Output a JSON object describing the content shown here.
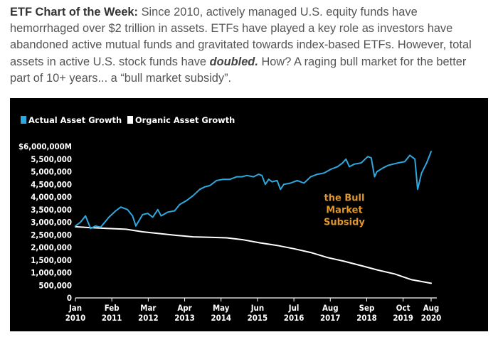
{
  "intro": {
    "lead": "ETF Chart of the Week:",
    "body1": " Since 2010, actively managed U.S. equity funds have hemorrhaged over $2 trillion in assets.  ETFs have played a key role as investors have abandoned active mutual funds and gravitated towards index-based ETFs. However, total assets in active U.S. stock funds have ",
    "emph": "doubled.",
    "body2": "  How?  A raging bull market for the better part of 10+ years... a “bull market subsidy”."
  },
  "colors": {
    "actual": "#2ea8e0",
    "organic": "#ffffff",
    "annotation": "#e0962a",
    "background": "#000000"
  },
  "chart_data": {
    "type": "line",
    "title": "",
    "xlabel": "",
    "ylabel": "",
    "legend_position": "top-left",
    "grid": false,
    "ylim": [
      0,
      6000000
    ],
    "xlim": [
      2010.0,
      2020.583
    ],
    "y_ticks": [
      0,
      500000,
      1000000,
      1500000,
      2000000,
      2500000,
      3000000,
      3500000,
      4000000,
      4500000,
      5000000,
      5500000,
      6000000
    ],
    "y_tick_labels": [
      "0",
      "500,000",
      "1,000,000",
      "1,500,000",
      "2,000,000",
      "2,500,000",
      "3,000,000",
      "3,500,000",
      "4,000,000",
      "4,500,000",
      "5,000,000",
      "5,500,000",
      "$6,000,000M"
    ],
    "x_ticks": [
      {
        "x": 2010.0,
        "month": "Jan",
        "year": "2010"
      },
      {
        "x": 2011.083,
        "month": "Feb",
        "year": "2011"
      },
      {
        "x": 2012.167,
        "month": "Mar",
        "year": "2012"
      },
      {
        "x": 2013.25,
        "month": "Apr",
        "year": "2013"
      },
      {
        "x": 2014.333,
        "month": "May",
        "year": "2014"
      },
      {
        "x": 2015.417,
        "month": "Jun",
        "year": "2015"
      },
      {
        "x": 2016.5,
        "month": "Jul",
        "year": "2016"
      },
      {
        "x": 2017.583,
        "month": "Aug",
        "year": "2017"
      },
      {
        "x": 2018.667,
        "month": "Sep",
        "year": "2018"
      },
      {
        "x": 2019.75,
        "month": "Oct",
        "year": "2019"
      },
      {
        "x": 2020.583,
        "month": "Aug",
        "year": "2020"
      }
    ],
    "series": [
      {
        "name": "Actual Asset Growth",
        "color": "#2ea8e0",
        "points": [
          [
            2010.0,
            2850000
          ],
          [
            2010.15,
            3000000
          ],
          [
            2010.3,
            3250000
          ],
          [
            2010.45,
            2750000
          ],
          [
            2010.6,
            2850000
          ],
          [
            2010.75,
            2800000
          ],
          [
            2011.0,
            3200000
          ],
          [
            2011.2,
            3450000
          ],
          [
            2011.35,
            3600000
          ],
          [
            2011.55,
            3500000
          ],
          [
            2011.7,
            3250000
          ],
          [
            2011.8,
            2850000
          ],
          [
            2012.0,
            3300000
          ],
          [
            2012.15,
            3350000
          ],
          [
            2012.3,
            3200000
          ],
          [
            2012.45,
            3500000
          ],
          [
            2012.55,
            3250000
          ],
          [
            2012.75,
            3400000
          ],
          [
            2012.95,
            3450000
          ],
          [
            2013.1,
            3700000
          ],
          [
            2013.3,
            3850000
          ],
          [
            2013.5,
            4050000
          ],
          [
            2013.7,
            4300000
          ],
          [
            2013.85,
            4400000
          ],
          [
            2014.0,
            4450000
          ],
          [
            2014.2,
            4650000
          ],
          [
            2014.4,
            4700000
          ],
          [
            2014.6,
            4700000
          ],
          [
            2014.8,
            4800000
          ],
          [
            2014.95,
            4800000
          ],
          [
            2015.1,
            4850000
          ],
          [
            2015.3,
            4800000
          ],
          [
            2015.45,
            4900000
          ],
          [
            2015.55,
            4850000
          ],
          [
            2015.65,
            4500000
          ],
          [
            2015.75,
            4700000
          ],
          [
            2015.85,
            4600000
          ],
          [
            2016.0,
            4650000
          ],
          [
            2016.1,
            4300000
          ],
          [
            2016.2,
            4500000
          ],
          [
            2016.4,
            4550000
          ],
          [
            2016.6,
            4650000
          ],
          [
            2016.8,
            4550000
          ],
          [
            2017.0,
            4800000
          ],
          [
            2017.2,
            4900000
          ],
          [
            2017.4,
            4950000
          ],
          [
            2017.6,
            5100000
          ],
          [
            2017.8,
            5200000
          ],
          [
            2017.95,
            5350000
          ],
          [
            2018.05,
            5500000
          ],
          [
            2018.15,
            5200000
          ],
          [
            2018.3,
            5300000
          ],
          [
            2018.5,
            5350000
          ],
          [
            2018.7,
            5600000
          ],
          [
            2018.8,
            5550000
          ],
          [
            2018.9,
            4800000
          ],
          [
            2018.97,
            5000000
          ],
          [
            2019.15,
            5150000
          ],
          [
            2019.3,
            5250000
          ],
          [
            2019.45,
            5300000
          ],
          [
            2019.6,
            5350000
          ],
          [
            2019.8,
            5400000
          ],
          [
            2019.95,
            5650000
          ],
          [
            2020.1,
            5500000
          ],
          [
            2020.18,
            4300000
          ],
          [
            2020.3,
            4950000
          ],
          [
            2020.45,
            5350000
          ],
          [
            2020.583,
            5800000
          ]
        ]
      },
      {
        "name": "Organic Asset Growth",
        "color": "#ffffff",
        "points": [
          [
            2010.0,
            2820000
          ],
          [
            2010.5,
            2780000
          ],
          [
            2011.0,
            2750000
          ],
          [
            2011.5,
            2720000
          ],
          [
            2012.0,
            2620000
          ],
          [
            2012.5,
            2550000
          ],
          [
            2013.0,
            2480000
          ],
          [
            2013.5,
            2420000
          ],
          [
            2014.0,
            2400000
          ],
          [
            2014.5,
            2380000
          ],
          [
            2015.0,
            2300000
          ],
          [
            2015.5,
            2180000
          ],
          [
            2016.0,
            2080000
          ],
          [
            2016.5,
            1950000
          ],
          [
            2017.0,
            1800000
          ],
          [
            2017.5,
            1600000
          ],
          [
            2018.0,
            1450000
          ],
          [
            2018.5,
            1280000
          ],
          [
            2019.0,
            1100000
          ],
          [
            2019.5,
            950000
          ],
          [
            2020.0,
            720000
          ],
          [
            2020.583,
            580000
          ]
        ]
      }
    ],
    "annotations": [
      {
        "lines": [
          "the Bull",
          "Market",
          "Subsidy"
        ],
        "x": 2018.0,
        "y": 3850000
      }
    ]
  }
}
